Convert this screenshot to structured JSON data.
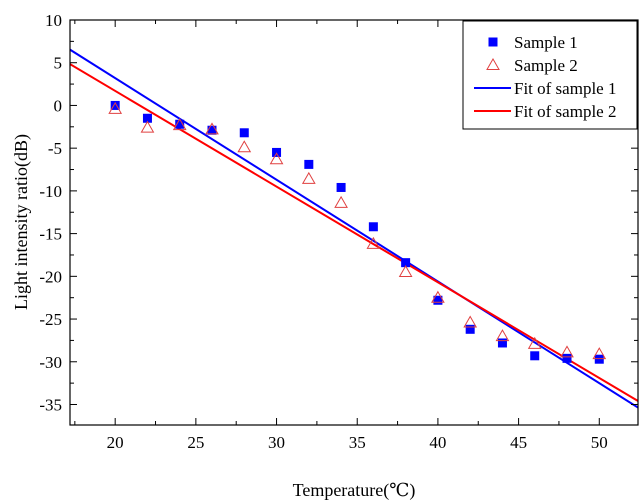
{
  "chart_data": {
    "type": "scatter",
    "xlabel": "Temperature(℃)",
    "ylabel": "Light intensity ratio(dB)",
    "xlim": [
      17.2,
      52.4
    ],
    "ylim": [
      -37.4,
      10
    ],
    "xticks": [
      20,
      25,
      30,
      35,
      40,
      45,
      50
    ],
    "yticks": [
      10,
      5,
      0,
      -5,
      -10,
      -15,
      -20,
      -25,
      -30,
      -35
    ],
    "grid": false,
    "legend_position": "top-right",
    "series": [
      {
        "name": "Sample 1",
        "marker": "square",
        "color": "#0000ff",
        "x": [
          20,
          22,
          24,
          26,
          28,
          30,
          32,
          34,
          36,
          38,
          40,
          42,
          44,
          46,
          48,
          50
        ],
        "y": [
          0,
          -1.5,
          -2.2,
          -2.9,
          -3.2,
          -5.5,
          -6.9,
          -9.6,
          -14.2,
          -18.4,
          -22.8,
          -26.2,
          -27.8,
          -29.3,
          -29.6,
          -29.7
        ]
      },
      {
        "name": "Sample 2",
        "marker": "triangle-open",
        "color": "#e04040",
        "x": [
          20,
          22,
          24,
          26,
          28,
          30,
          32,
          34,
          36,
          38,
          40,
          42,
          44,
          46,
          48,
          50
        ],
        "y": [
          -0.4,
          -2.6,
          -2.3,
          -2.8,
          -4.9,
          -6.3,
          -8.6,
          -11.4,
          -16.2,
          -19.5,
          -22.5,
          -25.4,
          -27.0,
          -27.9,
          -28.9,
          -29.1
        ]
      }
    ],
    "fits": [
      {
        "name": "Fit of sample 1",
        "color": "#0000ff",
        "slope": -1.19,
        "intercept": 27.0
      },
      {
        "name": "Fit of sample 2",
        "color": "#ff0000",
        "slope": -1.12,
        "intercept": 24.1
      }
    ]
  }
}
